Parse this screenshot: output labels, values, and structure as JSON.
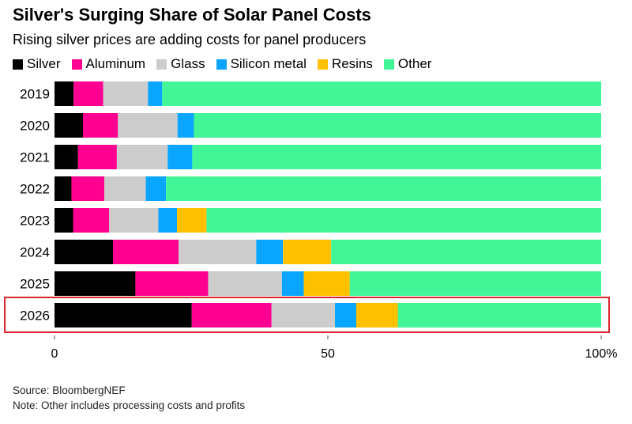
{
  "chart_data": {
    "type": "bar",
    "orientation": "horizontal",
    "stacked": true,
    "title": "Silver's Surging Share of Solar Panel Costs",
    "subtitle": "Rising silver prices are adding costs for panel producers",
    "categories": [
      "2019",
      "2020",
      "2021",
      "2022",
      "2023",
      "2024",
      "2025",
      "2026"
    ],
    "series": [
      {
        "name": "Silver",
        "color": "#000000",
        "values": [
          3.5,
          5.2,
          4.3,
          3.1,
          3.4,
          10.7,
          14.8,
          25.1
        ]
      },
      {
        "name": "Aluminum",
        "color": "#ff0090",
        "values": [
          5.4,
          6.4,
          7.1,
          6.0,
          6.6,
          12.0,
          13.3,
          14.6
        ]
      },
      {
        "name": "Glass",
        "color": "#cccccc",
        "values": [
          8.2,
          10.9,
          9.3,
          7.6,
          9.0,
          14.2,
          13.5,
          11.6
        ]
      },
      {
        "name": "Silicon metal",
        "color": "#0aa5ff",
        "values": [
          2.6,
          3.0,
          4.5,
          3.7,
          3.4,
          4.9,
          4.0,
          3.9
        ]
      },
      {
        "name": "Resins",
        "color": "#ffc000",
        "values": [
          0,
          0,
          0,
          0,
          5.4,
          8.8,
          8.4,
          7.6
        ]
      },
      {
        "name": "Other",
        "color": "#42f596",
        "values": [
          80.3,
          74.5,
          74.8,
          79.6,
          72.2,
          49.4,
          46.0,
          37.2
        ]
      }
    ],
    "xlim": [
      0,
      100
    ],
    "xticks": [
      "0",
      "50",
      "100%"
    ],
    "xtick_values": [
      0,
      50,
      100
    ],
    "highlighted_category": "2026",
    "highlight_color": "#d9262c",
    "legend_position": "top-left",
    "grid": false
  },
  "footer": {
    "source": "Source: BloombergNEF",
    "note": "Note: Other includes processing costs and profits"
  }
}
